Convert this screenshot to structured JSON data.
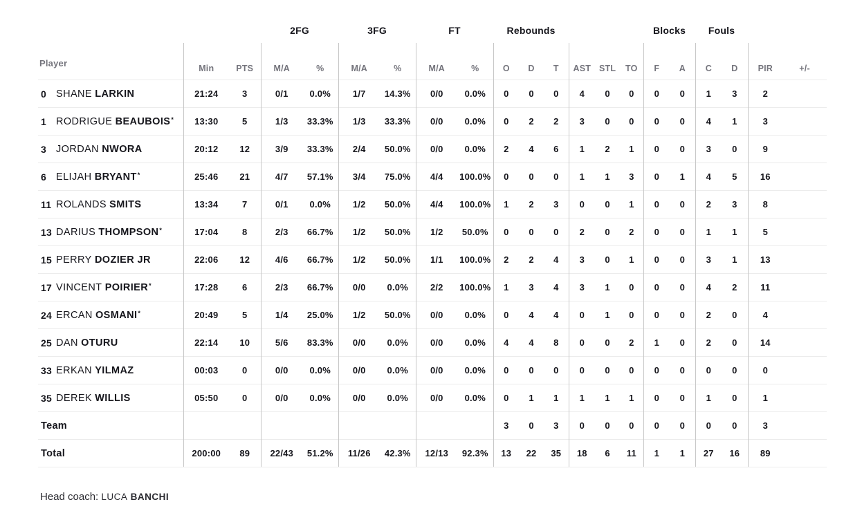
{
  "colors": {
    "text": "#16161c",
    "muted_header": "#74747c",
    "v_line": "#c7c7c7",
    "h_line": "#ececec",
    "background": "#ffffff"
  },
  "marks": {
    "starter": "*"
  },
  "header": {
    "player": "Player",
    "min": "Min",
    "pts": "PTS",
    "groups": {
      "fg2": "2FG",
      "fg3": "3FG",
      "ft": "FT",
      "rebounds": "Rebounds",
      "blocks": "Blocks",
      "fouls": "Fouls"
    },
    "ma": "M/A",
    "pct": "%",
    "reb_o": "O",
    "reb_d": "D",
    "reb_t": "T",
    "ast": "AST",
    "stl": "STL",
    "to": "TO",
    "blk_f": "F",
    "blk_a": "A",
    "foul_c": "C",
    "foul_d": "D",
    "pir": "PIR",
    "plus_minus": "+/-"
  },
  "rows": [
    {
      "number": "0",
      "first_name": "SHANE",
      "last_name": "LARKIN",
      "starter": false,
      "min": "21:24",
      "pts": "3",
      "fg2_ma": "0/1",
      "fg2_pct": "0.0%",
      "fg3_ma": "1/7",
      "fg3_pct": "14.3%",
      "ft_ma": "0/0",
      "ft_pct": "0.0%",
      "reb_o": "0",
      "reb_d": "0",
      "reb_t": "0",
      "ast": "4",
      "stl": "0",
      "to": "0",
      "blk_f": "0",
      "blk_a": "0",
      "foul_c": "1",
      "foul_d": "3",
      "pir": "2",
      "plus_minus": ""
    },
    {
      "number": "1",
      "first_name": "RODRIGUE",
      "last_name": "BEAUBOIS",
      "starter": true,
      "min": "13:30",
      "pts": "5",
      "fg2_ma": "1/3",
      "fg2_pct": "33.3%",
      "fg3_ma": "1/3",
      "fg3_pct": "33.3%",
      "ft_ma": "0/0",
      "ft_pct": "0.0%",
      "reb_o": "0",
      "reb_d": "2",
      "reb_t": "2",
      "ast": "3",
      "stl": "0",
      "to": "0",
      "blk_f": "0",
      "blk_a": "0",
      "foul_c": "4",
      "foul_d": "1",
      "pir": "3",
      "plus_minus": ""
    },
    {
      "number": "3",
      "first_name": "JORDAN",
      "last_name": "NWORA",
      "starter": false,
      "min": "20:12",
      "pts": "12",
      "fg2_ma": "3/9",
      "fg2_pct": "33.3%",
      "fg3_ma": "2/4",
      "fg3_pct": "50.0%",
      "ft_ma": "0/0",
      "ft_pct": "0.0%",
      "reb_o": "2",
      "reb_d": "4",
      "reb_t": "6",
      "ast": "1",
      "stl": "2",
      "to": "1",
      "blk_f": "0",
      "blk_a": "0",
      "foul_c": "3",
      "foul_d": "0",
      "pir": "9",
      "plus_minus": ""
    },
    {
      "number": "6",
      "first_name": "ELIJAH",
      "last_name": "BRYANT",
      "starter": true,
      "min": "25:46",
      "pts": "21",
      "fg2_ma": "4/7",
      "fg2_pct": "57.1%",
      "fg3_ma": "3/4",
      "fg3_pct": "75.0%",
      "ft_ma": "4/4",
      "ft_pct": "100.0%",
      "reb_o": "0",
      "reb_d": "0",
      "reb_t": "0",
      "ast": "1",
      "stl": "1",
      "to": "3",
      "blk_f": "0",
      "blk_a": "1",
      "foul_c": "4",
      "foul_d": "5",
      "pir": "16",
      "plus_minus": ""
    },
    {
      "number": "11",
      "first_name": "ROLANDS",
      "last_name": "SMITS",
      "starter": false,
      "min": "13:34",
      "pts": "7",
      "fg2_ma": "0/1",
      "fg2_pct": "0.0%",
      "fg3_ma": "1/2",
      "fg3_pct": "50.0%",
      "ft_ma": "4/4",
      "ft_pct": "100.0%",
      "reb_o": "1",
      "reb_d": "2",
      "reb_t": "3",
      "ast": "0",
      "stl": "0",
      "to": "1",
      "blk_f": "0",
      "blk_a": "0",
      "foul_c": "2",
      "foul_d": "3",
      "pir": "8",
      "plus_minus": ""
    },
    {
      "number": "13",
      "first_name": "DARIUS",
      "last_name": "THOMPSON",
      "starter": true,
      "min": "17:04",
      "pts": "8",
      "fg2_ma": "2/3",
      "fg2_pct": "66.7%",
      "fg3_ma": "1/2",
      "fg3_pct": "50.0%",
      "ft_ma": "1/2",
      "ft_pct": "50.0%",
      "reb_o": "0",
      "reb_d": "0",
      "reb_t": "0",
      "ast": "2",
      "stl": "0",
      "to": "2",
      "blk_f": "0",
      "blk_a": "0",
      "foul_c": "1",
      "foul_d": "1",
      "pir": "5",
      "plus_minus": ""
    },
    {
      "number": "15",
      "first_name": "PERRY",
      "last_name": "DOZIER JR",
      "starter": false,
      "min": "22:06",
      "pts": "12",
      "fg2_ma": "4/6",
      "fg2_pct": "66.7%",
      "fg3_ma": "1/2",
      "fg3_pct": "50.0%",
      "ft_ma": "1/1",
      "ft_pct": "100.0%",
      "reb_o": "2",
      "reb_d": "2",
      "reb_t": "4",
      "ast": "3",
      "stl": "0",
      "to": "1",
      "blk_f": "0",
      "blk_a": "0",
      "foul_c": "3",
      "foul_d": "1",
      "pir": "13",
      "plus_minus": ""
    },
    {
      "number": "17",
      "first_name": "VINCENT",
      "last_name": "POIRIER",
      "starter": true,
      "min": "17:28",
      "pts": "6",
      "fg2_ma": "2/3",
      "fg2_pct": "66.7%",
      "fg3_ma": "0/0",
      "fg3_pct": "0.0%",
      "ft_ma": "2/2",
      "ft_pct": "100.0%",
      "reb_o": "1",
      "reb_d": "3",
      "reb_t": "4",
      "ast": "3",
      "stl": "1",
      "to": "0",
      "blk_f": "0",
      "blk_a": "0",
      "foul_c": "4",
      "foul_d": "2",
      "pir": "11",
      "plus_minus": ""
    },
    {
      "number": "24",
      "first_name": "ERCAN",
      "last_name": "OSMANI",
      "starter": true,
      "min": "20:49",
      "pts": "5",
      "fg2_ma": "1/4",
      "fg2_pct": "25.0%",
      "fg3_ma": "1/2",
      "fg3_pct": "50.0%",
      "ft_ma": "0/0",
      "ft_pct": "0.0%",
      "reb_o": "0",
      "reb_d": "4",
      "reb_t": "4",
      "ast": "0",
      "stl": "1",
      "to": "0",
      "blk_f": "0",
      "blk_a": "0",
      "foul_c": "2",
      "foul_d": "0",
      "pir": "4",
      "plus_minus": ""
    },
    {
      "number": "25",
      "first_name": "DAN",
      "last_name": "OTURU",
      "starter": false,
      "min": "22:14",
      "pts": "10",
      "fg2_ma": "5/6",
      "fg2_pct": "83.3%",
      "fg3_ma": "0/0",
      "fg3_pct": "0.0%",
      "ft_ma": "0/0",
      "ft_pct": "0.0%",
      "reb_o": "4",
      "reb_d": "4",
      "reb_t": "8",
      "ast": "0",
      "stl": "0",
      "to": "2",
      "blk_f": "1",
      "blk_a": "0",
      "foul_c": "2",
      "foul_d": "0",
      "pir": "14",
      "plus_minus": ""
    },
    {
      "number": "33",
      "first_name": "ERKAN",
      "last_name": "YILMAZ",
      "starter": false,
      "min": "00:03",
      "pts": "0",
      "fg2_ma": "0/0",
      "fg2_pct": "0.0%",
      "fg3_ma": "0/0",
      "fg3_pct": "0.0%",
      "ft_ma": "0/0",
      "ft_pct": "0.0%",
      "reb_o": "0",
      "reb_d": "0",
      "reb_t": "0",
      "ast": "0",
      "stl": "0",
      "to": "0",
      "blk_f": "0",
      "blk_a": "0",
      "foul_c": "0",
      "foul_d": "0",
      "pir": "0",
      "plus_minus": ""
    },
    {
      "number": "35",
      "first_name": "DEREK",
      "last_name": "WILLIS",
      "starter": false,
      "min": "05:50",
      "pts": "0",
      "fg2_ma": "0/0",
      "fg2_pct": "0.0%",
      "fg3_ma": "0/0",
      "fg3_pct": "0.0%",
      "ft_ma": "0/0",
      "ft_pct": "0.0%",
      "reb_o": "0",
      "reb_d": "1",
      "reb_t": "1",
      "ast": "1",
      "stl": "1",
      "to": "1",
      "blk_f": "0",
      "blk_a": "0",
      "foul_c": "1",
      "foul_d": "0",
      "pir": "1",
      "plus_minus": ""
    }
  ],
  "team_row": {
    "label": "Team",
    "min": "",
    "pts": "",
    "fg2_ma": "",
    "fg2_pct": "",
    "fg3_ma": "",
    "fg3_pct": "",
    "ft_ma": "",
    "ft_pct": "",
    "reb_o": "3",
    "reb_d": "0",
    "reb_t": "3",
    "ast": "0",
    "stl": "0",
    "to": "0",
    "blk_f": "0",
    "blk_a": "0",
    "foul_c": "0",
    "foul_d": "0",
    "pir": "3",
    "plus_minus": ""
  },
  "total_row": {
    "label": "Total",
    "min": "200:00",
    "pts": "89",
    "fg2_ma": "22/43",
    "fg2_pct": "51.2%",
    "fg3_ma": "11/26",
    "fg3_pct": "42.3%",
    "ft_ma": "12/13",
    "ft_pct": "92.3%",
    "reb_o": "13",
    "reb_d": "22",
    "reb_t": "35",
    "ast": "18",
    "stl": "6",
    "to": "11",
    "blk_f": "1",
    "blk_a": "1",
    "foul_c": "27",
    "foul_d": "16",
    "pir": "89",
    "plus_minus": ""
  },
  "footer": {
    "label": "Head coach:",
    "coach_first": "LUCA",
    "coach_last": "BANCHI"
  }
}
